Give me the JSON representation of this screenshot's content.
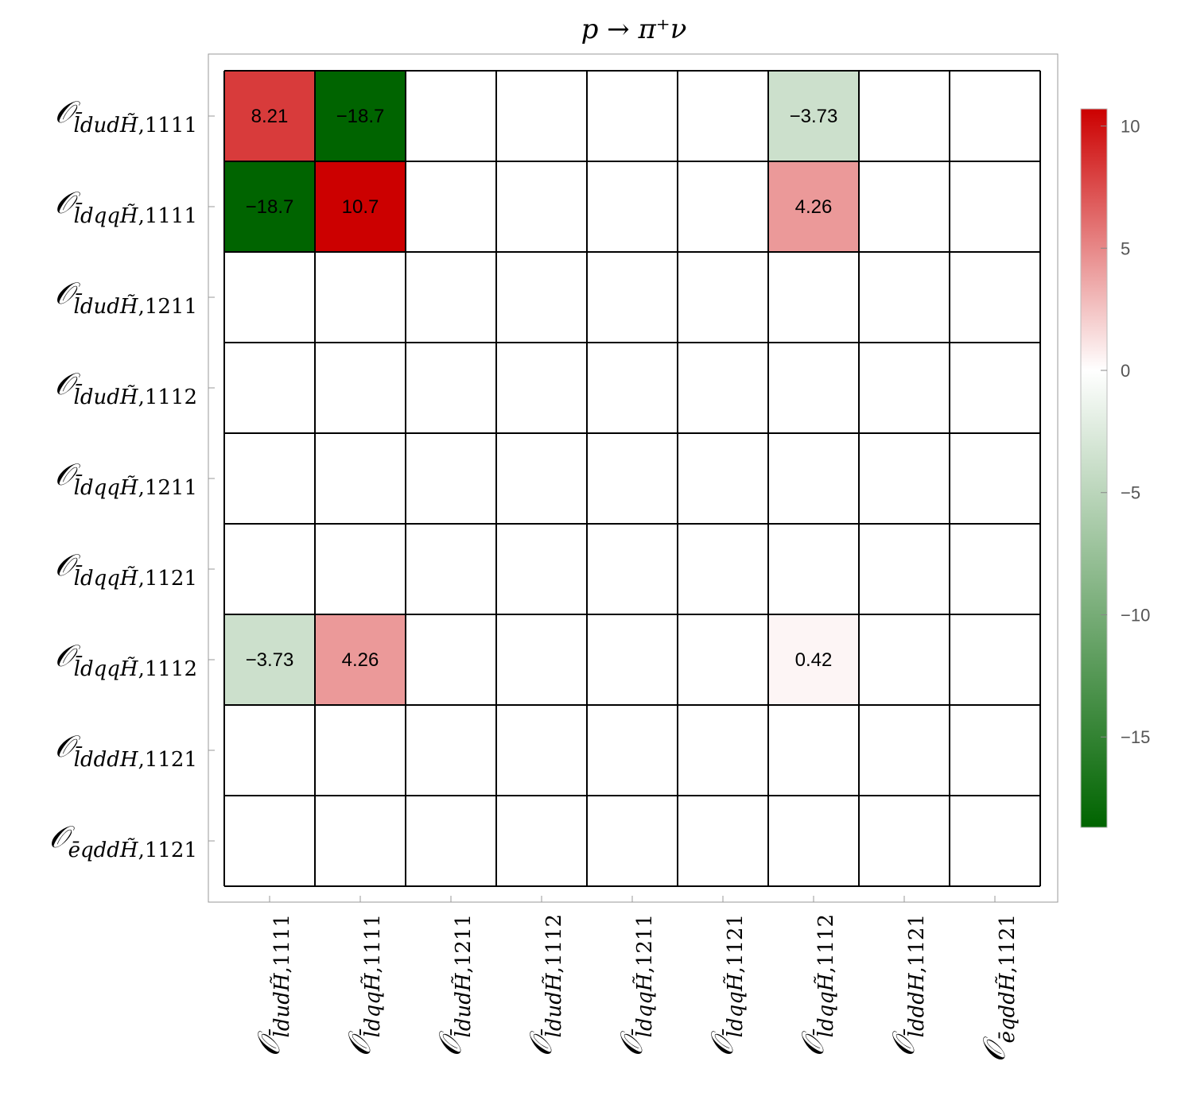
{
  "chart_data": {
    "type": "heatmap",
    "title": "p → π⁺ν",
    "row_labels": [
      {
        "op": "𝒪",
        "sub": "l̄dudH̃",
        "idx": ",1111"
      },
      {
        "op": "𝒪",
        "sub": "l̄dqqH̃",
        "idx": ",1111"
      },
      {
        "op": "𝒪",
        "sub": "l̄dudH̃",
        "idx": ",1211"
      },
      {
        "op": "𝒪",
        "sub": "l̄dudH̃",
        "idx": ",1112"
      },
      {
        "op": "𝒪",
        "sub": "l̄dqqH̃",
        "idx": ",1211"
      },
      {
        "op": "𝒪",
        "sub": "l̄dqqH̃",
        "idx": ",1121"
      },
      {
        "op": "𝒪",
        "sub": "l̄dqqH̃",
        "idx": ",1112"
      },
      {
        "op": "𝒪",
        "sub": "l̄dddH",
        "idx": ",1121"
      },
      {
        "op": "𝒪",
        "sub": "ēqddH̃",
        "idx": ",1121"
      }
    ],
    "col_labels": [
      {
        "op": "𝒪",
        "sub": "l̄dudH̃",
        "idx": ",1111"
      },
      {
        "op": "𝒪",
        "sub": "l̄dqqH̃",
        "idx": ",1111"
      },
      {
        "op": "𝒪",
        "sub": "l̄dudH̃",
        "idx": ",1211"
      },
      {
        "op": "𝒪",
        "sub": "l̄dudH̃",
        "idx": ",1112"
      },
      {
        "op": "𝒪",
        "sub": "l̄dqqH̃",
        "idx": ",1211"
      },
      {
        "op": "𝒪",
        "sub": "l̄dqqH̃",
        "idx": ",1121"
      },
      {
        "op": "𝒪",
        "sub": "l̄dqqH̃",
        "idx": ",1112"
      },
      {
        "op": "𝒪",
        "sub": "l̄dddH",
        "idx": ",1121"
      },
      {
        "op": "𝒪",
        "sub": "ēqddH̃",
        "idx": ",1121"
      }
    ],
    "cells": [
      {
        "row": 0,
        "col": 0,
        "value": 8.21,
        "label": "8.21"
      },
      {
        "row": 0,
        "col": 1,
        "value": -18.7,
        "label": "−18.7"
      },
      {
        "row": 0,
        "col": 6,
        "value": -3.73,
        "label": "−3.73"
      },
      {
        "row": 1,
        "col": 0,
        "value": -18.7,
        "label": "−18.7"
      },
      {
        "row": 1,
        "col": 1,
        "value": 10.7,
        "label": "10.7"
      },
      {
        "row": 1,
        "col": 6,
        "value": 4.26,
        "label": "4.26"
      },
      {
        "row": 6,
        "col": 0,
        "value": -3.73,
        "label": "−3.73"
      },
      {
        "row": 6,
        "col": 1,
        "value": 4.26,
        "label": "4.26"
      },
      {
        "row": 6,
        "col": 6,
        "value": 0.42,
        "label": "0.42"
      }
    ],
    "colorbar": {
      "range": [
        -18.7,
        10.7
      ],
      "ticks": [
        10,
        5,
        0,
        -5,
        -10,
        -15
      ],
      "tick_labels": [
        "10",
        "5",
        "0",
        "−5",
        "−10",
        "−15"
      ],
      "colors": {
        "max": "#cc0000",
        "zero": "#ffffff",
        "min": "#006400"
      }
    },
    "empty_cell_color": "#ffffff",
    "grid_color": "#000000",
    "grid": true
  }
}
